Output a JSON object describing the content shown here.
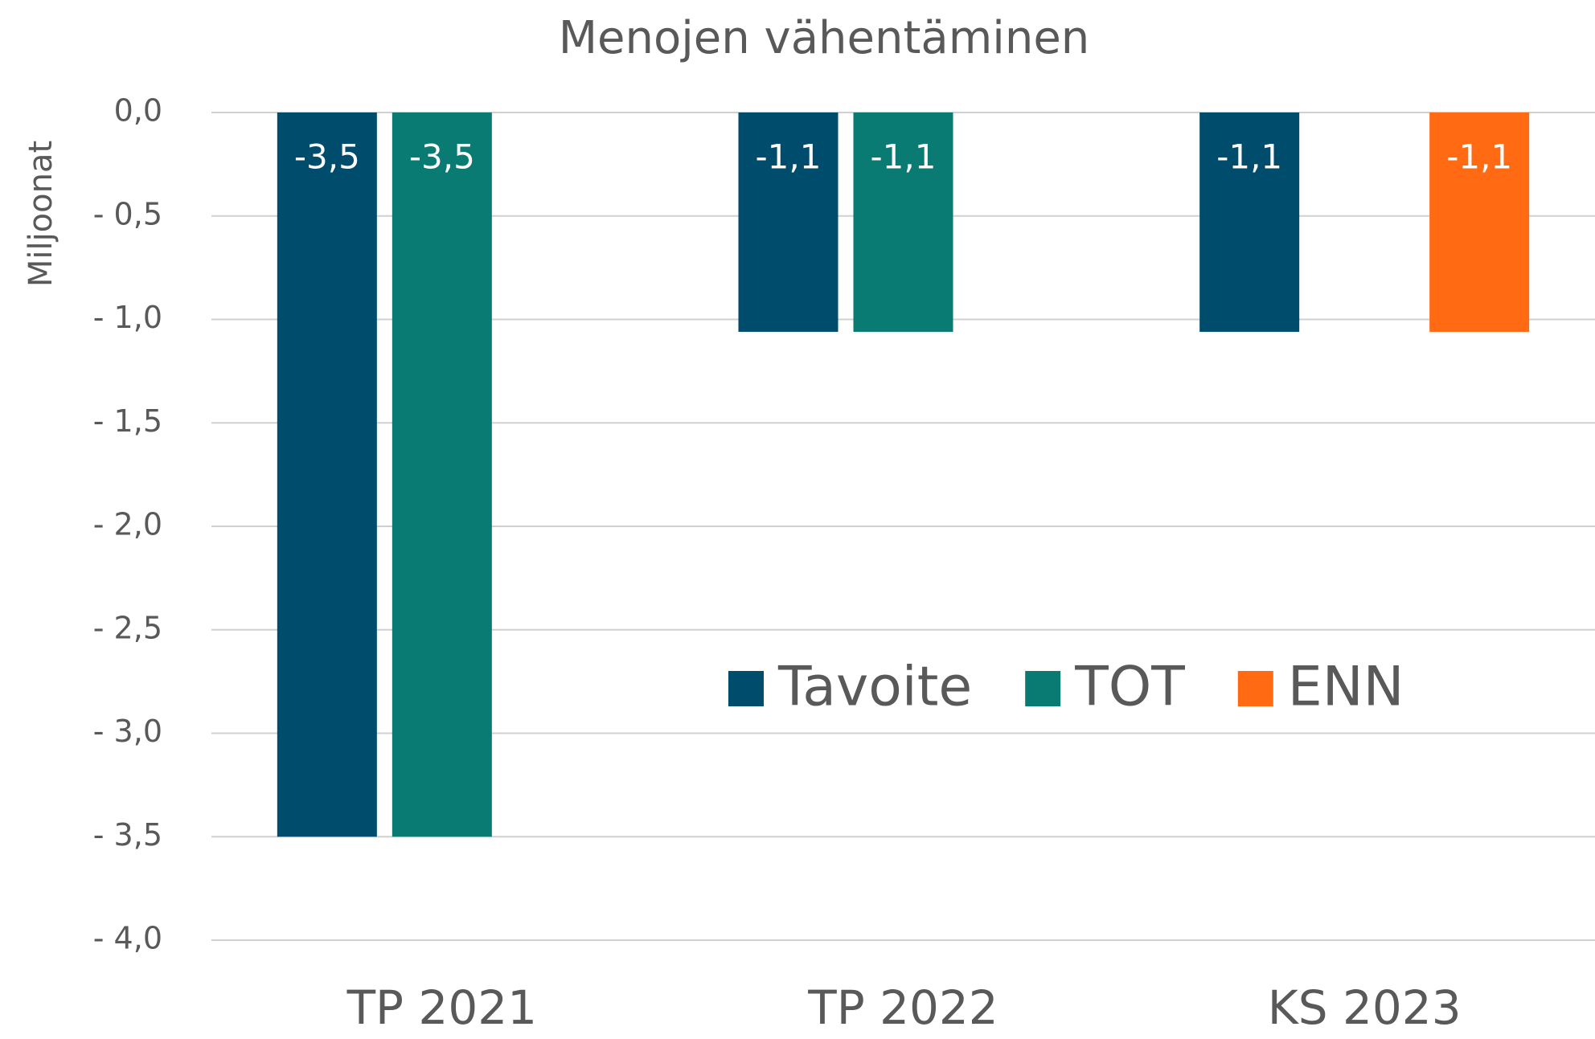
{
  "chart_data": {
    "type": "bar",
    "title": "Menojen vähentäminen",
    "y_label": "Miljoonat",
    "categories": [
      "TP 2021",
      "TP 2022",
      "KS 2023"
    ],
    "series": [
      {
        "name": "Tavoite",
        "color": "#004c6d",
        "values": [
          -3.5,
          -1.06,
          -1.06
        ],
        "value_labels": [
          "-3,5",
          "-1,1",
          "-1,1"
        ]
      },
      {
        "name": "TOT",
        "color": "#0a7b73",
        "values": [
          -3.5,
          -1.06,
          null
        ],
        "value_labels": [
          "-3,5",
          "-1,1",
          null
        ]
      },
      {
        "name": "ENN",
        "color": "#ff6a13",
        "values": [
          null,
          null,
          -1.06
        ],
        "value_labels": [
          null,
          null,
          "-1,1"
        ]
      }
    ],
    "ylim": [
      -4,
      0
    ],
    "yticks": [
      {
        "value": 0,
        "label": "0,0"
      },
      {
        "value": -0.5,
        "label": "- 0,5"
      },
      {
        "value": -1,
        "label": "- 1,0"
      },
      {
        "value": -1.5,
        "label": "- 1,5"
      },
      {
        "value": -2,
        "label": "- 2,0"
      },
      {
        "value": -2.5,
        "label": "- 2,5"
      },
      {
        "value": -3,
        "label": "- 3,0"
      },
      {
        "value": -3.5,
        "label": "- 3,5"
      },
      {
        "value": -4,
        "label": "- 4,0"
      }
    ],
    "grid": true,
    "legend": "center"
  }
}
